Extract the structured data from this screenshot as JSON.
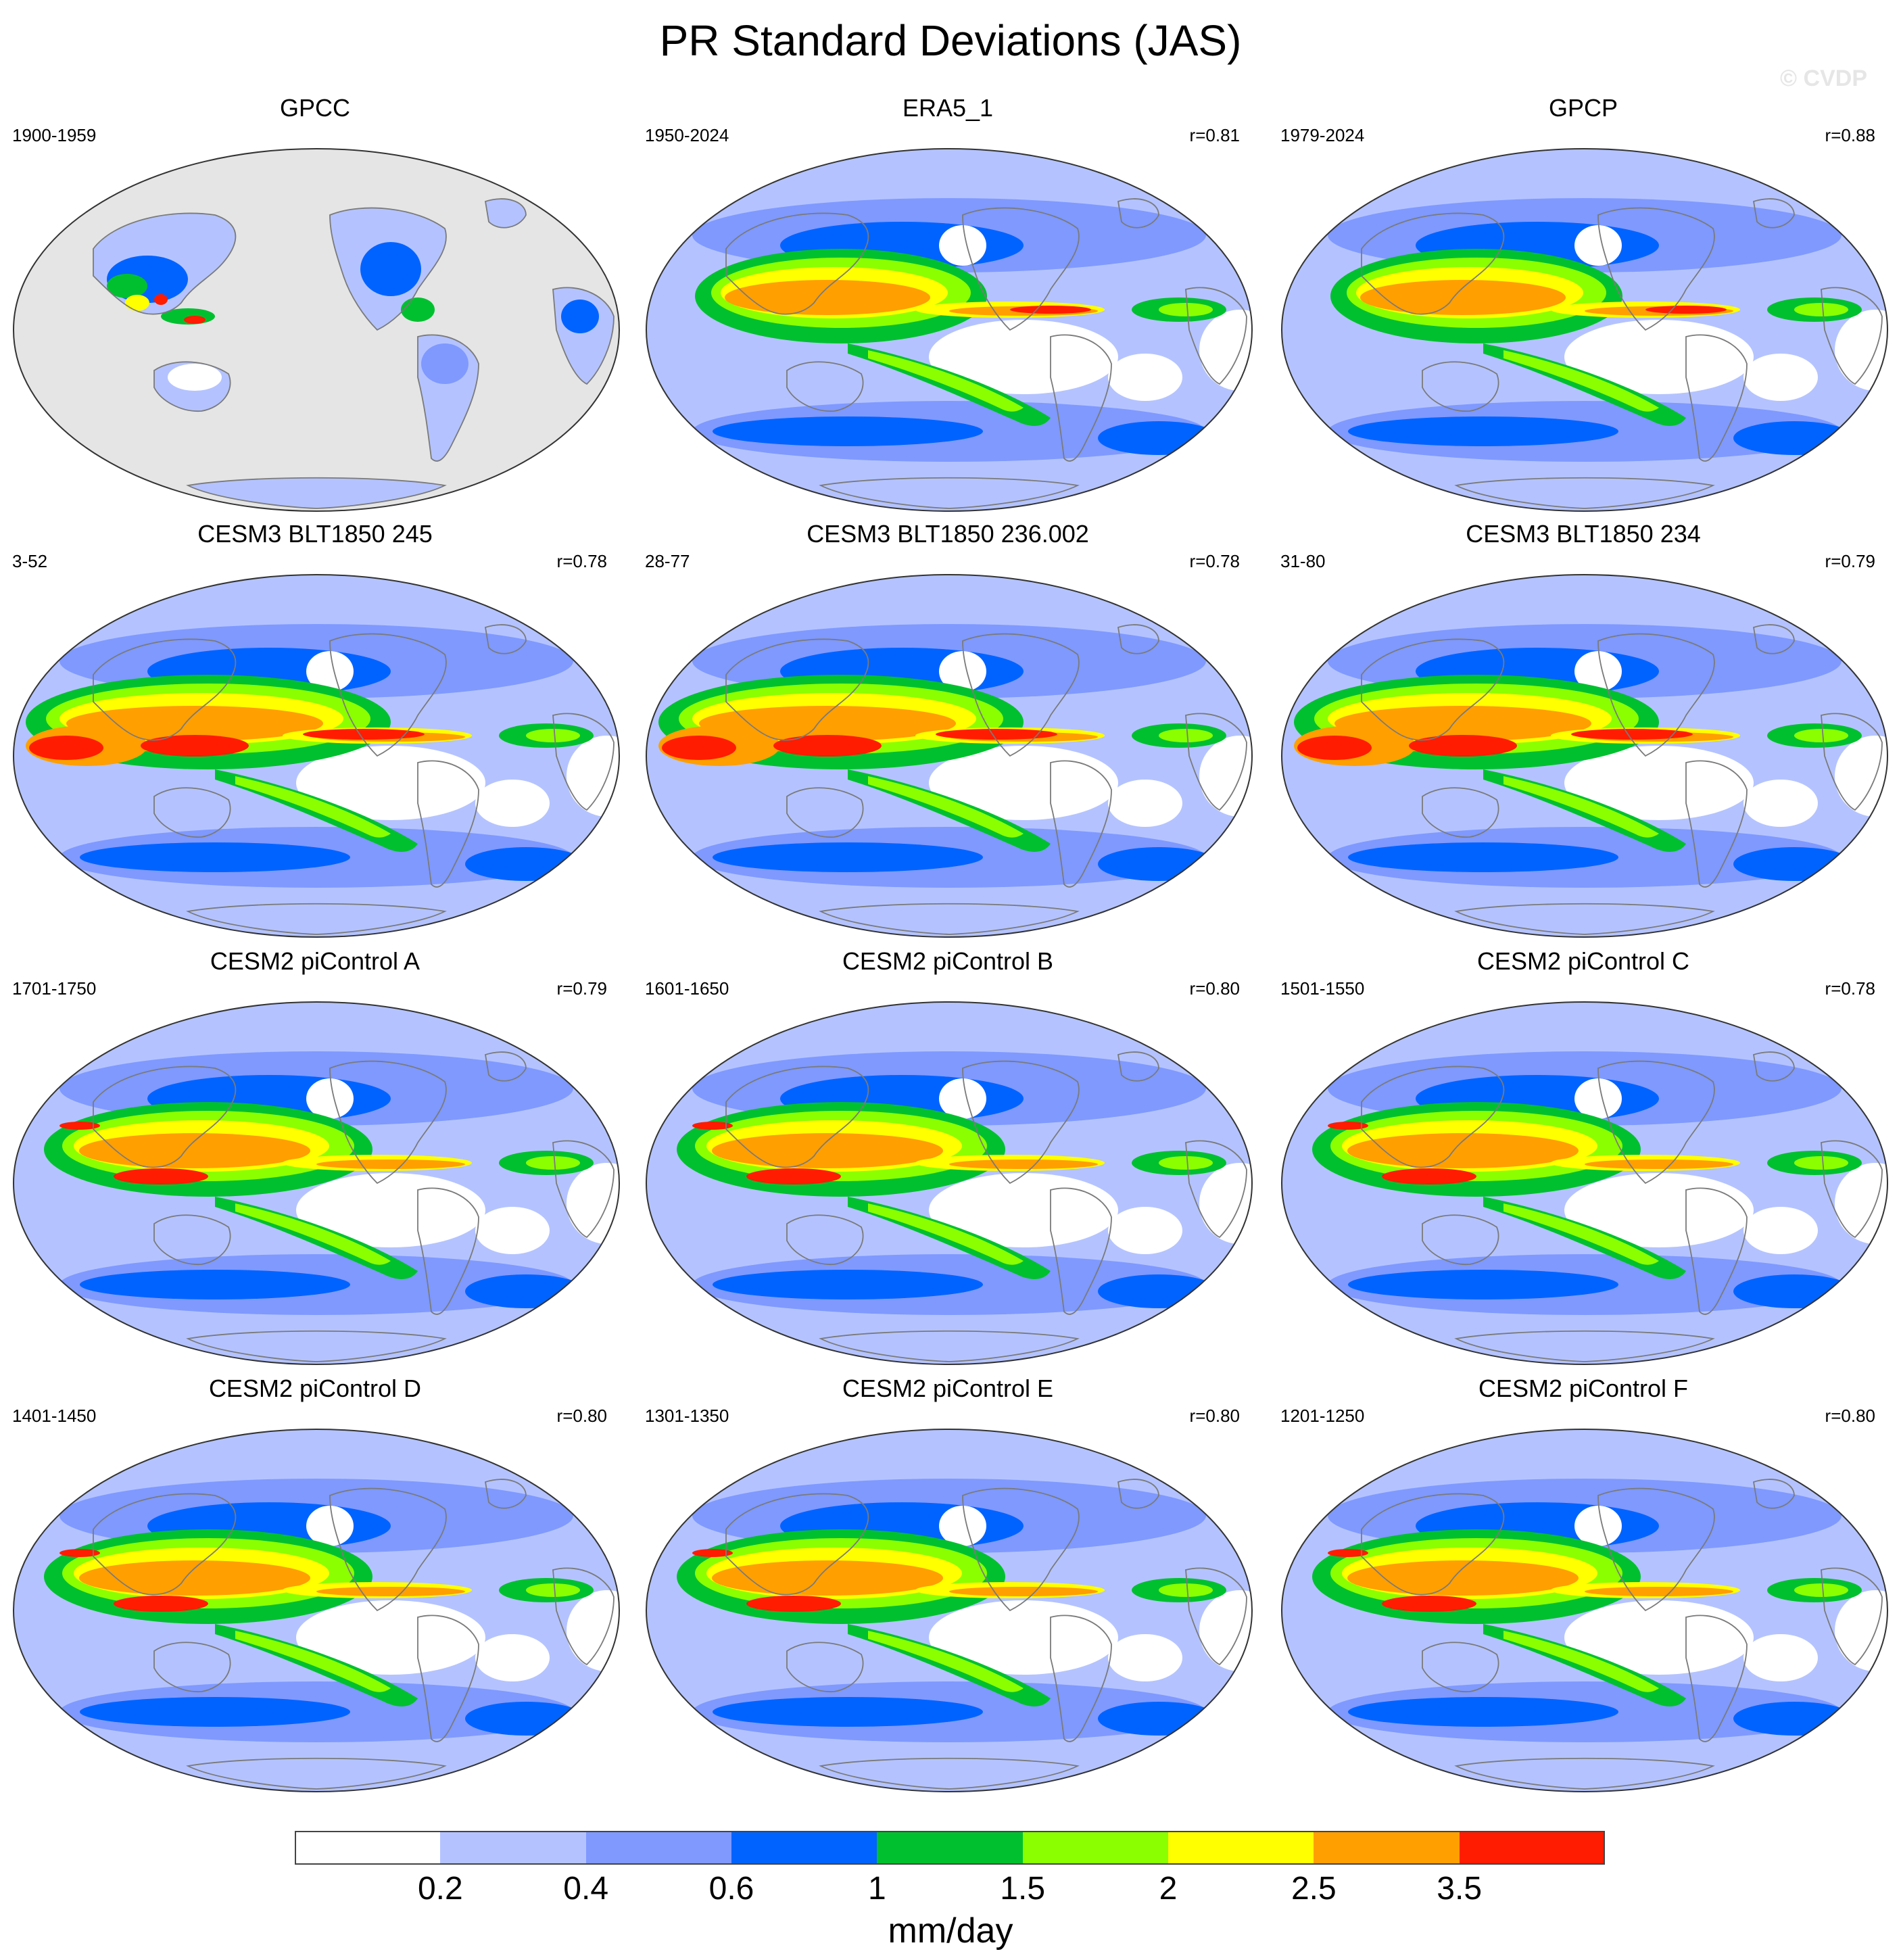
{
  "title": "PR Standard Deviations (JAS)",
  "watermark": "© CVDP",
  "panels": [
    {
      "title": "GPCC",
      "period": "1900-1959",
      "corr": "",
      "style": "obs_land"
    },
    {
      "title": "ERA5_1",
      "period": "1950-2024",
      "corr": "r=0.81",
      "style": "obs"
    },
    {
      "title": "GPCP",
      "period": "1979-2024",
      "corr": "r=0.88",
      "style": "obs"
    },
    {
      "title": "CESM3 BLT1850 245",
      "period": "3-52",
      "corr": "r=0.78",
      "style": "strong"
    },
    {
      "title": "CESM3 BLT1850 236.002",
      "period": "28-77",
      "corr": "r=0.78",
      "style": "strong"
    },
    {
      "title": "CESM3 BLT1850 234",
      "period": "31-80",
      "corr": "r=0.79",
      "style": "strong"
    },
    {
      "title": "CESM2 piControl A",
      "period": "1701-1750",
      "corr": "r=0.79",
      "style": "model"
    },
    {
      "title": "CESM2 piControl B",
      "period": "1601-1650",
      "corr": "r=0.80",
      "style": "model"
    },
    {
      "title": "CESM2 piControl C",
      "period": "1501-1550",
      "corr": "r=0.78",
      "style": "model"
    },
    {
      "title": "CESM2 piControl D",
      "period": "1401-1450",
      "corr": "r=0.80",
      "style": "model"
    },
    {
      "title": "CESM2 piControl E",
      "period": "1301-1350",
      "corr": "r=0.80",
      "style": "model"
    },
    {
      "title": "CESM2 piControl F",
      "period": "1201-1250",
      "corr": "r=0.80",
      "style": "model"
    }
  ],
  "colorbar": {
    "units": "mm/day",
    "colors": [
      "#ffffff",
      "#b4c3ff",
      "#7f99ff",
      "#0063ff",
      "#00c02f",
      "#8bff00",
      "#ffff00",
      "#ff9f00",
      "#ff1c00"
    ],
    "labels": [
      "0.2",
      "0.4",
      "0.6",
      "1",
      "1.5",
      "2",
      "2.5",
      "3.5"
    ]
  },
  "colors": {
    "land_missing": "#e5e5e5",
    "coastline": "#7a7a7a",
    "border": "#333333"
  }
}
